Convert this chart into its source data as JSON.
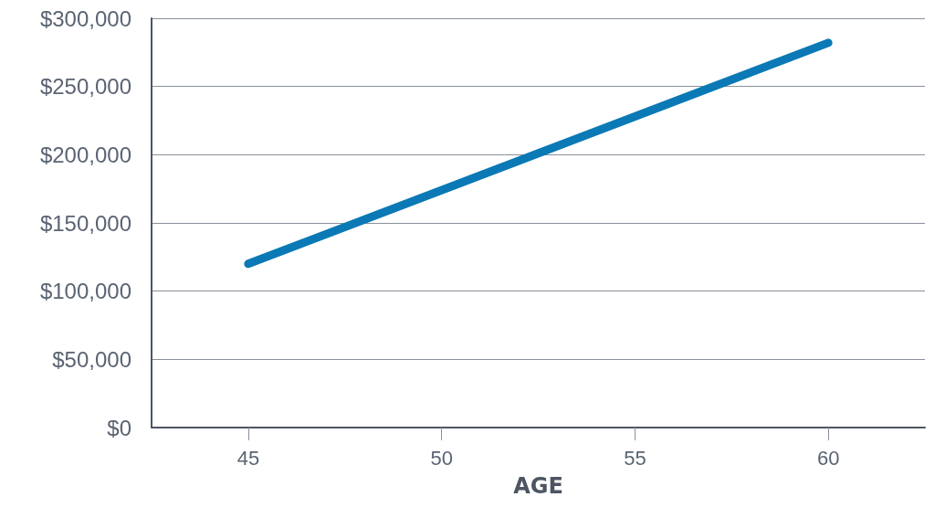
{
  "chart_data": {
    "type": "line",
    "xlabel": "AGE",
    "x": [
      45,
      60
    ],
    "series": [
      {
        "color": "#0a79b5",
        "values": [
          120000,
          282000
        ]
      }
    ],
    "xlim": [
      42.5,
      62.5
    ],
    "xticks": [
      45,
      50,
      55,
      60
    ],
    "ylim": [
      0,
      300000
    ],
    "yticks": [
      {
        "value": 0,
        "label": "$0"
      },
      {
        "value": 50000,
        "label": "$50,000"
      },
      {
        "value": 100000,
        "label": "$100,000"
      },
      {
        "value": 150000,
        "label": "$150,000"
      },
      {
        "value": 200000,
        "label": "$200,000"
      },
      {
        "value": 250000,
        "label": "$250,000"
      },
      {
        "value": 300000,
        "label": "$300,000"
      }
    ],
    "grid": "y",
    "line_style": "solid"
  }
}
